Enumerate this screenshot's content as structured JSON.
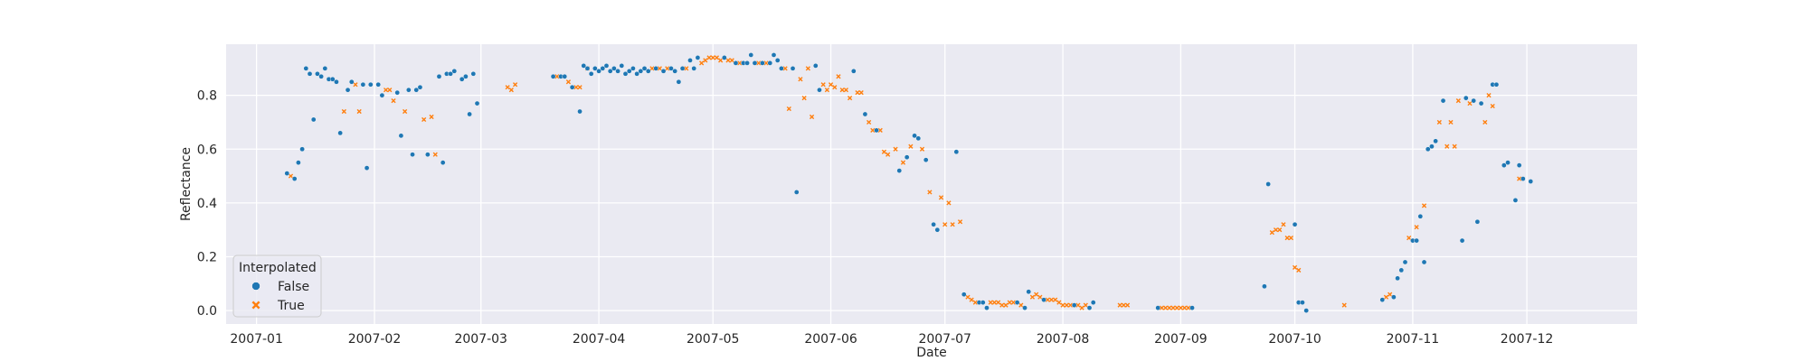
{
  "chart_data": {
    "type": "scatter",
    "title": "",
    "xlabel": "Date",
    "ylabel": "Reflectance",
    "x_scale": "date",
    "xlim": [
      "2006-12-24",
      "2007-12-30"
    ],
    "ylim": [
      -0.05,
      0.99
    ],
    "grid": true,
    "x_ticks": [
      "2007-01",
      "2007-02",
      "2007-03",
      "2007-04",
      "2007-05",
      "2007-06",
      "2007-07",
      "2007-08",
      "2007-09",
      "2007-10",
      "2007-11",
      "2007-12"
    ],
    "x_tick_dates": [
      "2007-01-01",
      "2007-02-01",
      "2007-03-01",
      "2007-04-01",
      "2007-05-01",
      "2007-06-01",
      "2007-07-01",
      "2007-08-01",
      "2007-09-01",
      "2007-10-01",
      "2007-11-01",
      "2007-12-01"
    ],
    "y_ticks": [
      "0.0",
      "0.2",
      "0.4",
      "0.6",
      "0.8"
    ],
    "y_tick_values": [
      0.0,
      0.2,
      0.4,
      0.6,
      0.8
    ],
    "legend": {
      "title": "Interpolated",
      "position": "bottom-left",
      "entries": [
        "False",
        "True"
      ]
    },
    "colors": {
      "False": "#1f77b4",
      "True": "#ff7f0e",
      "background": "#eaeaf2",
      "grid": "#ffffff"
    },
    "series": [
      {
        "name": "False",
        "marker": "circle",
        "points": [
          [
            "2007-01-09",
            0.51
          ],
          [
            "2007-01-11",
            0.49
          ],
          [
            "2007-01-12",
            0.55
          ],
          [
            "2007-01-13",
            0.6
          ],
          [
            "2007-01-14",
            0.9
          ],
          [
            "2007-01-15",
            0.88
          ],
          [
            "2007-01-16",
            0.71
          ],
          [
            "2007-01-17",
            0.88
          ],
          [
            "2007-01-18",
            0.87
          ],
          [
            "2007-01-19",
            0.9
          ],
          [
            "2007-01-20",
            0.86
          ],
          [
            "2007-01-21",
            0.86
          ],
          [
            "2007-01-22",
            0.85
          ],
          [
            "2007-01-23",
            0.66
          ],
          [
            "2007-01-25",
            0.82
          ],
          [
            "2007-01-26",
            0.85
          ],
          [
            "2007-01-29",
            0.84
          ],
          [
            "2007-01-30",
            0.53
          ],
          [
            "2007-01-31",
            0.84
          ],
          [
            "2007-02-02",
            0.84
          ],
          [
            "2007-02-03",
            0.8
          ],
          [
            "2007-02-07",
            0.81
          ],
          [
            "2007-02-08",
            0.65
          ],
          [
            "2007-02-10",
            0.82
          ],
          [
            "2007-02-11",
            0.58
          ],
          [
            "2007-02-12",
            0.82
          ],
          [
            "2007-02-13",
            0.83
          ],
          [
            "2007-02-15",
            0.58
          ],
          [
            "2007-02-18",
            0.87
          ],
          [
            "2007-02-19",
            0.55
          ],
          [
            "2007-02-20",
            0.88
          ],
          [
            "2007-02-21",
            0.88
          ],
          [
            "2007-02-22",
            0.89
          ],
          [
            "2007-02-24",
            0.86
          ],
          [
            "2007-02-25",
            0.87
          ],
          [
            "2007-02-26",
            0.73
          ],
          [
            "2007-02-27",
            0.88
          ],
          [
            "2007-02-28",
            0.77
          ],
          [
            "2007-03-20",
            0.87
          ],
          [
            "2007-03-22",
            0.87
          ],
          [
            "2007-03-23",
            0.87
          ],
          [
            "2007-03-25",
            0.83
          ],
          [
            "2007-03-27",
            0.74
          ],
          [
            "2007-03-28",
            0.91
          ],
          [
            "2007-03-29",
            0.9
          ],
          [
            "2007-03-30",
            0.88
          ],
          [
            "2007-03-31",
            0.9
          ],
          [
            "2007-04-01",
            0.89
          ],
          [
            "2007-04-02",
            0.9
          ],
          [
            "2007-04-03",
            0.91
          ],
          [
            "2007-04-04",
            0.89
          ],
          [
            "2007-04-05",
            0.9
          ],
          [
            "2007-04-06",
            0.89
          ],
          [
            "2007-04-07",
            0.91
          ],
          [
            "2007-04-08",
            0.88
          ],
          [
            "2007-04-09",
            0.89
          ],
          [
            "2007-04-10",
            0.9
          ],
          [
            "2007-04-11",
            0.88
          ],
          [
            "2007-04-12",
            0.89
          ],
          [
            "2007-04-13",
            0.9
          ],
          [
            "2007-04-14",
            0.89
          ],
          [
            "2007-04-16",
            0.9
          ],
          [
            "2007-04-18",
            0.89
          ],
          [
            "2007-04-20",
            0.9
          ],
          [
            "2007-04-21",
            0.89
          ],
          [
            "2007-04-22",
            0.85
          ],
          [
            "2007-04-23",
            0.9
          ],
          [
            "2007-04-25",
            0.93
          ],
          [
            "2007-04-26",
            0.9
          ],
          [
            "2007-04-27",
            0.94
          ],
          [
            "2007-05-04",
            0.94
          ],
          [
            "2007-05-07",
            0.92
          ],
          [
            "2007-05-09",
            0.92
          ],
          [
            "2007-05-10",
            0.92
          ],
          [
            "2007-05-11",
            0.95
          ],
          [
            "2007-05-12",
            0.92
          ],
          [
            "2007-05-14",
            0.92
          ],
          [
            "2007-05-16",
            0.92
          ],
          [
            "2007-05-17",
            0.95
          ],
          [
            "2007-05-18",
            0.93
          ],
          [
            "2007-05-19",
            0.9
          ],
          [
            "2007-05-22",
            0.9
          ],
          [
            "2007-05-23",
            0.44
          ],
          [
            "2007-05-28",
            0.91
          ],
          [
            "2007-05-29",
            0.82
          ],
          [
            "2007-06-07",
            0.89
          ],
          [
            "2007-06-10",
            0.73
          ],
          [
            "2007-06-13",
            0.67
          ],
          [
            "2007-06-19",
            0.52
          ],
          [
            "2007-06-21",
            0.57
          ],
          [
            "2007-06-23",
            0.65
          ],
          [
            "2007-06-24",
            0.64
          ],
          [
            "2007-06-26",
            0.56
          ],
          [
            "2007-06-28",
            0.32
          ],
          [
            "2007-06-29",
            0.3
          ],
          [
            "2007-07-04",
            0.59
          ],
          [
            "2007-07-06",
            0.06
          ],
          [
            "2007-07-10",
            0.03
          ],
          [
            "2007-07-11",
            0.03
          ],
          [
            "2007-07-12",
            0.01
          ],
          [
            "2007-07-20",
            0.03
          ],
          [
            "2007-07-22",
            0.01
          ],
          [
            "2007-07-23",
            0.07
          ],
          [
            "2007-07-27",
            0.04
          ],
          [
            "2007-08-04",
            0.02
          ],
          [
            "2007-08-08",
            0.01
          ],
          [
            "2007-08-09",
            0.03
          ],
          [
            "2007-08-26",
            0.01
          ],
          [
            "2007-09-04",
            0.01
          ],
          [
            "2007-09-23",
            0.09
          ],
          [
            "2007-09-24",
            0.47
          ],
          [
            "2007-10-01",
            0.32
          ],
          [
            "2007-10-02",
            0.03
          ],
          [
            "2007-10-03",
            0.03
          ],
          [
            "2007-10-04",
            0.0
          ],
          [
            "2007-10-24",
            0.04
          ],
          [
            "2007-10-27",
            0.05
          ],
          [
            "2007-10-28",
            0.12
          ],
          [
            "2007-10-29",
            0.15
          ],
          [
            "2007-10-30",
            0.18
          ],
          [
            "2007-11-01",
            0.26
          ],
          [
            "2007-11-02",
            0.26
          ],
          [
            "2007-11-03",
            0.35
          ],
          [
            "2007-11-04",
            0.18
          ],
          [
            "2007-11-05",
            0.6
          ],
          [
            "2007-11-06",
            0.61
          ],
          [
            "2007-11-07",
            0.63
          ],
          [
            "2007-11-09",
            0.78
          ],
          [
            "2007-11-14",
            0.26
          ],
          [
            "2007-11-15",
            0.79
          ],
          [
            "2007-11-17",
            0.78
          ],
          [
            "2007-11-18",
            0.33
          ],
          [
            "2007-11-19",
            0.77
          ],
          [
            "2007-11-22",
            0.84
          ],
          [
            "2007-11-23",
            0.84
          ],
          [
            "2007-11-25",
            0.54
          ],
          [
            "2007-11-26",
            0.55
          ],
          [
            "2007-11-28",
            0.41
          ],
          [
            "2007-11-29",
            0.54
          ],
          [
            "2007-11-30",
            0.49
          ],
          [
            "2007-12-02",
            0.48
          ]
        ]
      },
      {
        "name": "True",
        "marker": "x",
        "points": [
          [
            "2007-01-10",
            0.5
          ],
          [
            "2007-01-24",
            0.74
          ],
          [
            "2007-01-27",
            0.84
          ],
          [
            "2007-01-28",
            0.74
          ],
          [
            "2007-02-04",
            0.82
          ],
          [
            "2007-02-05",
            0.82
          ],
          [
            "2007-02-06",
            0.78
          ],
          [
            "2007-02-09",
            0.74
          ],
          [
            "2007-02-14",
            0.71
          ],
          [
            "2007-02-16",
            0.72
          ],
          [
            "2007-02-17",
            0.58
          ],
          [
            "2007-03-08",
            0.83
          ],
          [
            "2007-03-09",
            0.82
          ],
          [
            "2007-03-10",
            0.84
          ],
          [
            "2007-03-21",
            0.87
          ],
          [
            "2007-03-24",
            0.85
          ],
          [
            "2007-03-26",
            0.83
          ],
          [
            "2007-03-27",
            0.83
          ],
          [
            "2007-03-29",
            0.9
          ],
          [
            "2007-04-15",
            0.9
          ],
          [
            "2007-04-17",
            0.9
          ],
          [
            "2007-04-19",
            0.9
          ],
          [
            "2007-04-24",
            0.9
          ],
          [
            "2007-04-28",
            0.92
          ],
          [
            "2007-04-29",
            0.93
          ],
          [
            "2007-04-30",
            0.94
          ],
          [
            "2007-05-01",
            0.94
          ],
          [
            "2007-05-02",
            0.94
          ],
          [
            "2007-05-03",
            0.93
          ],
          [
            "2007-05-05",
            0.93
          ],
          [
            "2007-05-06",
            0.93
          ],
          [
            "2007-05-08",
            0.92
          ],
          [
            "2007-05-13",
            0.92
          ],
          [
            "2007-05-15",
            0.92
          ],
          [
            "2007-05-20",
            0.9
          ],
          [
            "2007-05-21",
            0.75
          ],
          [
            "2007-05-24",
            0.86
          ],
          [
            "2007-05-25",
            0.79
          ],
          [
            "2007-05-26",
            0.9
          ],
          [
            "2007-05-27",
            0.72
          ],
          [
            "2007-05-30",
            0.84
          ],
          [
            "2007-05-31",
            0.82
          ],
          [
            "2007-06-01",
            0.84
          ],
          [
            "2007-06-02",
            0.83
          ],
          [
            "2007-06-03",
            0.87
          ],
          [
            "2007-06-04",
            0.82
          ],
          [
            "2007-06-05",
            0.82
          ],
          [
            "2007-06-06",
            0.79
          ],
          [
            "2007-06-08",
            0.81
          ],
          [
            "2007-06-09",
            0.81
          ],
          [
            "2007-06-11",
            0.7
          ],
          [
            "2007-06-12",
            0.67
          ],
          [
            "2007-06-14",
            0.67
          ],
          [
            "2007-06-15",
            0.59
          ],
          [
            "2007-06-16",
            0.58
          ],
          [
            "2007-06-18",
            0.6
          ],
          [
            "2007-06-20",
            0.55
          ],
          [
            "2007-06-22",
            0.61
          ],
          [
            "2007-06-25",
            0.6
          ],
          [
            "2007-06-27",
            0.44
          ],
          [
            "2007-06-30",
            0.42
          ],
          [
            "2007-07-01",
            0.32
          ],
          [
            "2007-07-02",
            0.4
          ],
          [
            "2007-07-03",
            0.32
          ],
          [
            "2007-07-05",
            0.33
          ],
          [
            "2007-07-07",
            0.05
          ],
          [
            "2007-07-08",
            0.04
          ],
          [
            "2007-07-09",
            0.03
          ],
          [
            "2007-07-13",
            0.03
          ],
          [
            "2007-07-14",
            0.03
          ],
          [
            "2007-07-15",
            0.03
          ],
          [
            "2007-07-16",
            0.02
          ],
          [
            "2007-07-17",
            0.02
          ],
          [
            "2007-07-18",
            0.03
          ],
          [
            "2007-07-19",
            0.03
          ],
          [
            "2007-07-21",
            0.02
          ],
          [
            "2007-07-24",
            0.05
          ],
          [
            "2007-07-25",
            0.06
          ],
          [
            "2007-07-26",
            0.05
          ],
          [
            "2007-07-28",
            0.04
          ],
          [
            "2007-07-29",
            0.04
          ],
          [
            "2007-07-30",
            0.04
          ],
          [
            "2007-07-31",
            0.03
          ],
          [
            "2007-08-01",
            0.02
          ],
          [
            "2007-08-02",
            0.02
          ],
          [
            "2007-08-03",
            0.02
          ],
          [
            "2007-08-05",
            0.02
          ],
          [
            "2007-08-06",
            0.01
          ],
          [
            "2007-08-07",
            0.02
          ],
          [
            "2007-08-16",
            0.02
          ],
          [
            "2007-08-17",
            0.02
          ],
          [
            "2007-08-18",
            0.02
          ],
          [
            "2007-08-27",
            0.01
          ],
          [
            "2007-08-28",
            0.01
          ],
          [
            "2007-08-29",
            0.01
          ],
          [
            "2007-08-30",
            0.01
          ],
          [
            "2007-08-31",
            0.01
          ],
          [
            "2007-09-01",
            0.01
          ],
          [
            "2007-09-02",
            0.01
          ],
          [
            "2007-09-03",
            0.01
          ],
          [
            "2007-09-25",
            0.29
          ],
          [
            "2007-09-26",
            0.3
          ],
          [
            "2007-09-27",
            0.3
          ],
          [
            "2007-09-28",
            0.32
          ],
          [
            "2007-09-29",
            0.27
          ],
          [
            "2007-09-30",
            0.27
          ],
          [
            "2007-10-01",
            0.16
          ],
          [
            "2007-10-02",
            0.15
          ],
          [
            "2007-10-14",
            0.02
          ],
          [
            "2007-10-25",
            0.05
          ],
          [
            "2007-10-26",
            0.06
          ],
          [
            "2007-10-31",
            0.27
          ],
          [
            "2007-11-02",
            0.31
          ],
          [
            "2007-11-04",
            0.39
          ],
          [
            "2007-11-08",
            0.7
          ],
          [
            "2007-11-10",
            0.61
          ],
          [
            "2007-11-11",
            0.7
          ],
          [
            "2007-11-12",
            0.61
          ],
          [
            "2007-11-13",
            0.78
          ],
          [
            "2007-11-16",
            0.77
          ],
          [
            "2007-11-20",
            0.7
          ],
          [
            "2007-11-21",
            0.8
          ],
          [
            "2007-11-22",
            0.76
          ],
          [
            "2007-11-29",
            0.49
          ]
        ]
      }
    ]
  }
}
